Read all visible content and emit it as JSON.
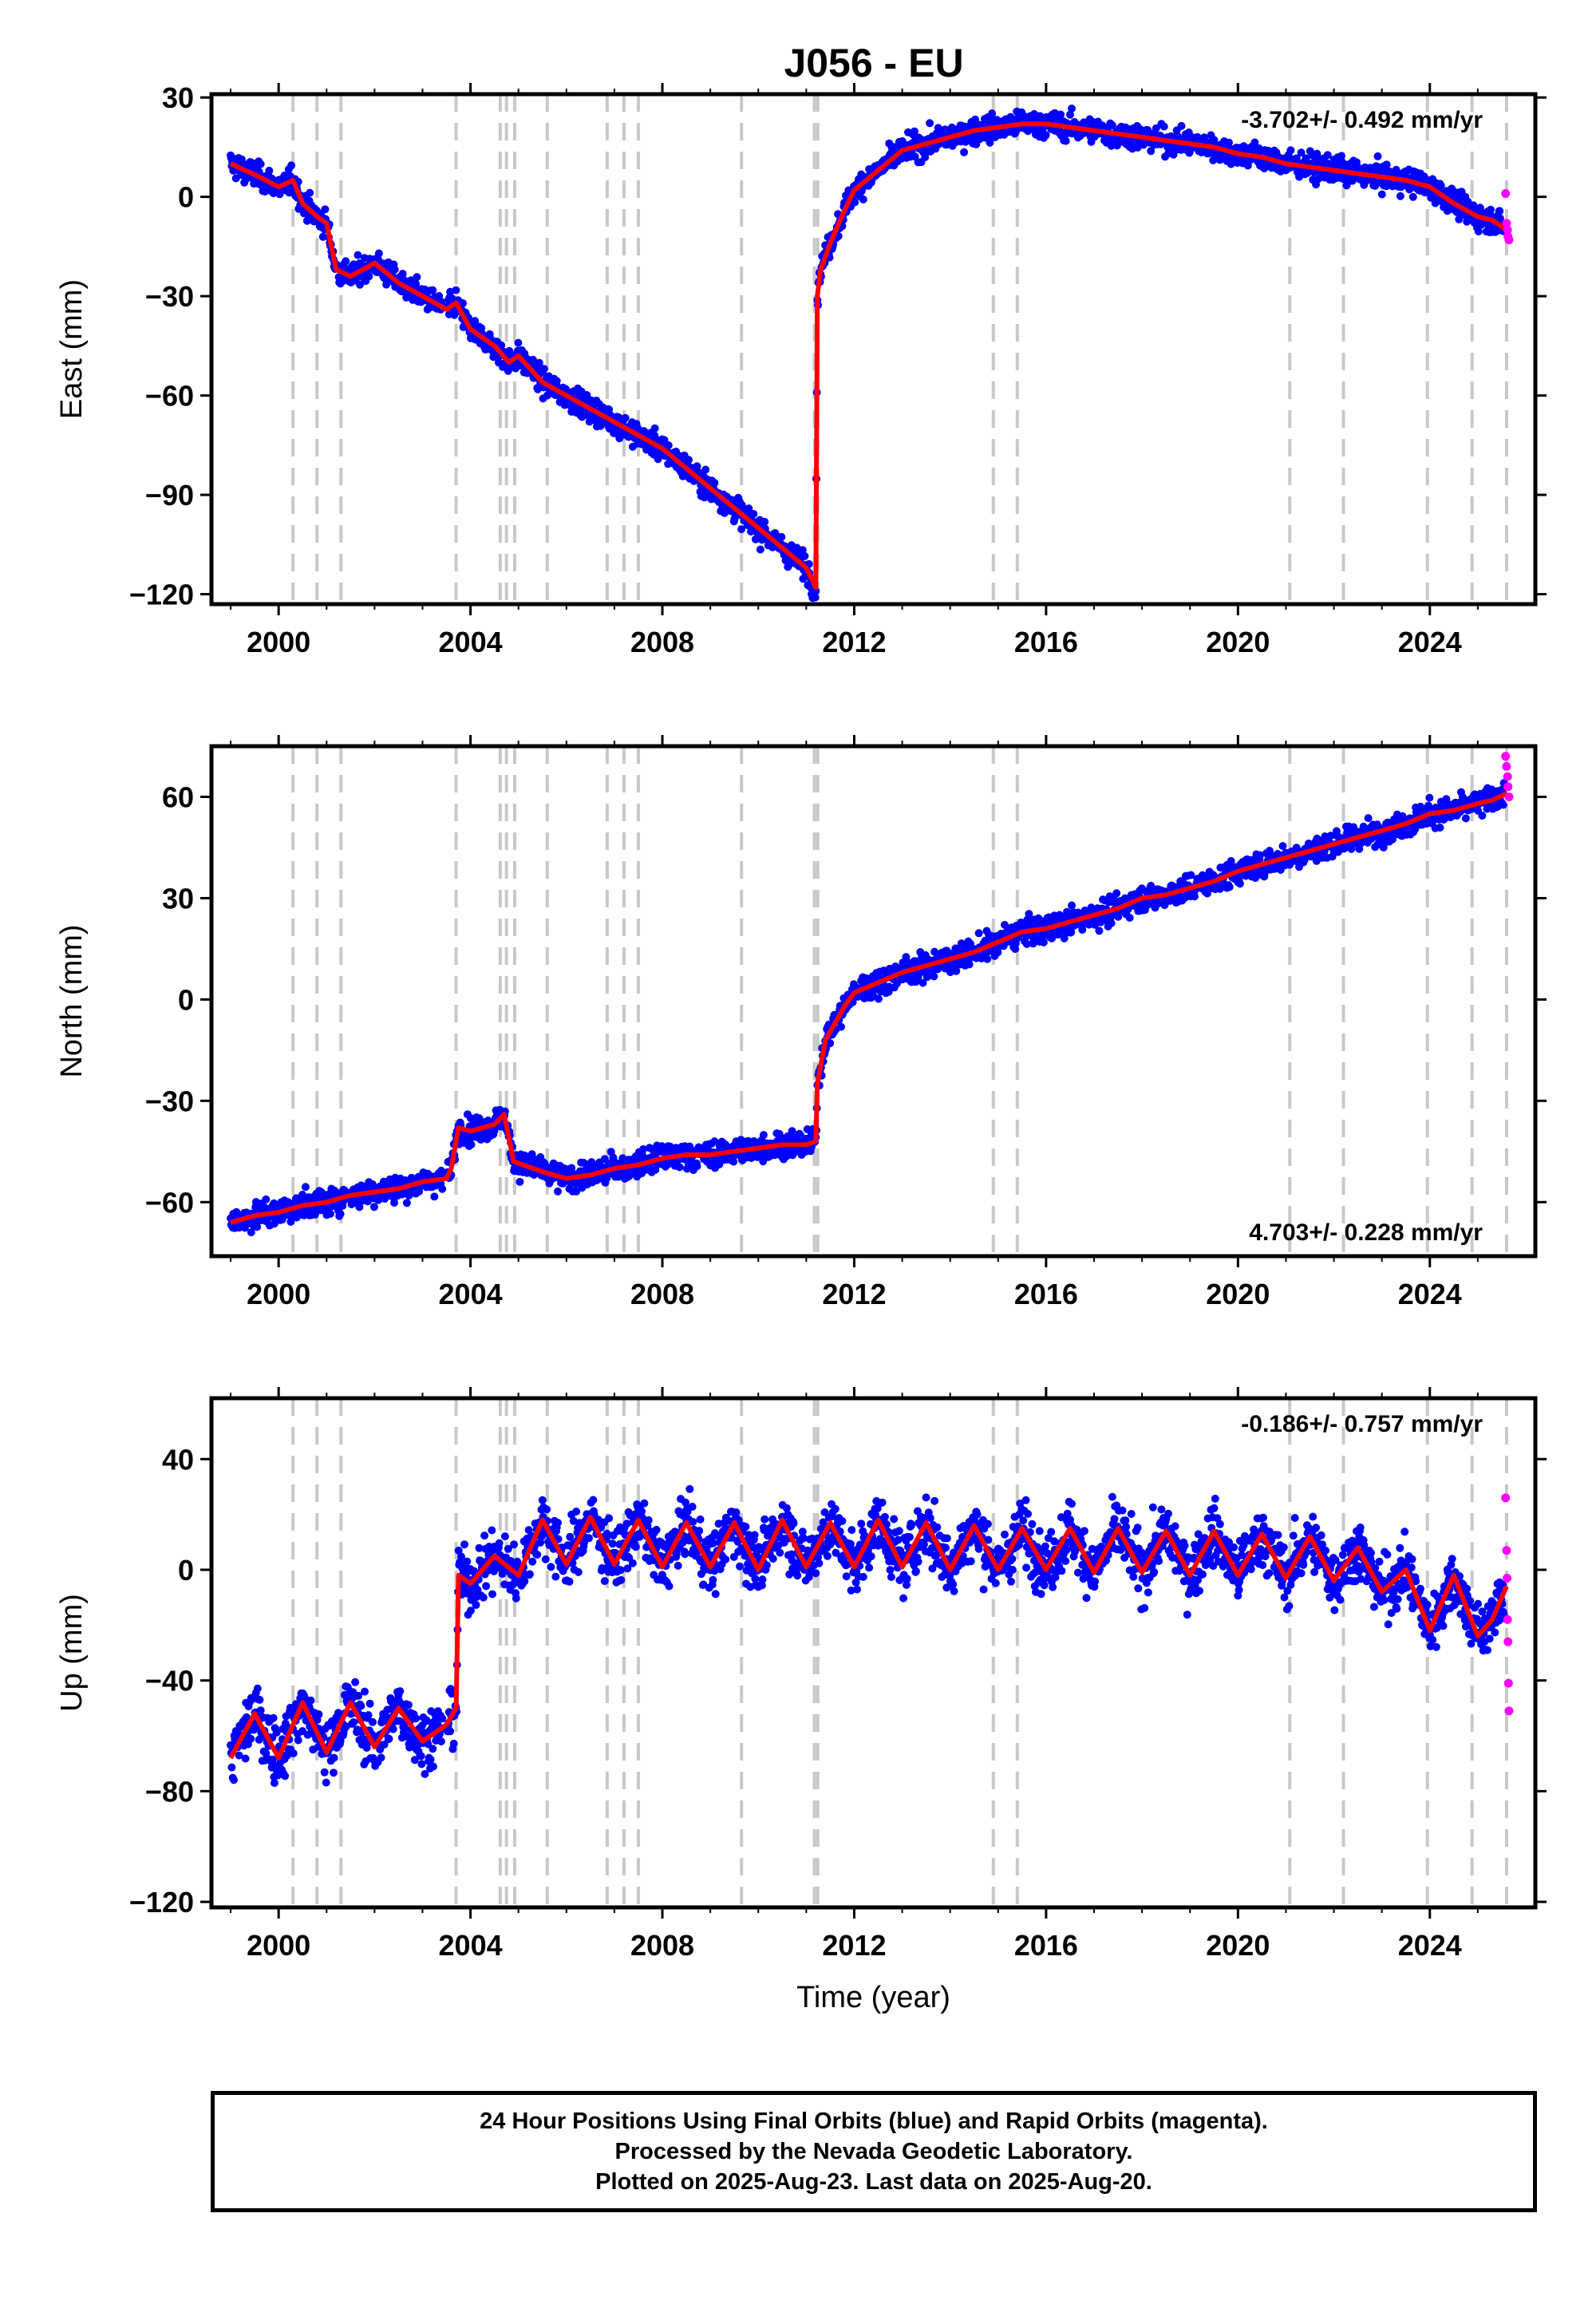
{
  "footer": {
    "line1": "24 Hour Positions Using Final Orbits (blue) and Rapid Orbits (magenta).",
    "line2": "Processed by the Nevada Geodetic Laboratory.",
    "line3": "Plotted on 2025-Aug-23. Last data on 2025-Aug-20."
  },
  "colors": {
    "final_orbits": "#0000ff",
    "rapid_orbits": "#ff00ff",
    "model": "#ff0000",
    "event_lines": "#c8c8c8"
  },
  "chart_data": [
    {
      "type": "scatter",
      "title": "J056 - EU",
      "xlabel": "",
      "ylabel": "East (mm)",
      "xlim": [
        1998.6,
        2026.2
      ],
      "ylim": [
        -123,
        31
      ],
      "xticks": [
        "2000",
        "2004",
        "2008",
        "2012",
        "2016",
        "2020",
        "2024"
      ],
      "yticks": [
        "30",
        "0",
        "−30",
        "−60",
        "−90",
        "−120"
      ],
      "rate_text": "-3.702+/- 0.492 mm/yr",
      "grid": false,
      "series": [
        {
          "color": "#ff0000",
          "x": [
            1999.0,
            1999.6,
            2000.0,
            2000.3,
            2000.5,
            2000.8,
            2001.0,
            2001.2,
            2001.5,
            2002.0,
            2002.5,
            2003.0,
            2003.5,
            2003.7,
            2004.0,
            2004.5,
            2004.8,
            2005.0,
            2005.5,
            2006.0,
            2006.5,
            2007.0,
            2007.5,
            2008.0,
            2008.5,
            2009.0,
            2009.5,
            2010.0,
            2010.5,
            2011.0,
            2011.2,
            2011.23,
            2011.3,
            2011.5,
            2011.8,
            2012.0,
            2012.5,
            2013.0,
            2013.5,
            2014.0,
            2014.5,
            2015.0,
            2015.5,
            2016.0,
            2016.5,
            2017.0,
            2017.5,
            2018.0,
            2018.5,
            2019.0,
            2019.5,
            2020.0,
            2020.5,
            2021.0,
            2021.5,
            2022.0,
            2022.5,
            2023.0,
            2023.5,
            2024.0,
            2024.5,
            2025.0,
            2025.3,
            2025.6
          ],
          "y": [
            10,
            6,
            3,
            5,
            -2,
            -6,
            -8,
            -22,
            -24,
            -20,
            -26,
            -30,
            -34,
            -32,
            -40,
            -45,
            -50,
            -48,
            -56,
            -60,
            -64,
            -68,
            -72,
            -76,
            -82,
            -88,
            -94,
            -100,
            -106,
            -112,
            -118,
            -30,
            -22,
            -14,
            -4,
            2,
            8,
            14,
            16,
            18,
            20,
            21,
            22,
            22,
            21,
            20,
            19,
            18,
            17,
            16,
            15,
            13,
            12,
            10,
            9,
            8,
            7,
            6,
            5,
            3,
            -2,
            -6,
            -7,
            -10
          ]
        },
        {
          "color": "#ff00ff",
          "x": [
            2025.58,
            2025.6,
            2025.62,
            2025.63,
            2025.65
          ],
          "y": [
            1,
            -8,
            -10,
            -12,
            -13
          ]
        }
      ]
    },
    {
      "type": "scatter",
      "title": "",
      "xlabel": "",
      "ylabel": "North (mm)",
      "xlim": [
        1998.6,
        2026.2
      ],
      "ylim": [
        -76,
        75
      ],
      "xticks": [
        "2000",
        "2004",
        "2008",
        "2012",
        "2016",
        "2020",
        "2024"
      ],
      "yticks": [
        "60",
        "30",
        "0",
        "−30",
        "−60"
      ],
      "rate_text": "4.703+/- 0.228 mm/yr",
      "grid": false,
      "series": [
        {
          "color": "#ff0000",
          "x": [
            1999.0,
            1999.5,
            2000.0,
            2000.5,
            2001.0,
            2001.5,
            2002.0,
            2002.5,
            2003.0,
            2003.5,
            2003.6,
            2003.75,
            2004.0,
            2004.5,
            2004.7,
            2004.9,
            2005.5,
            2006.0,
            2006.5,
            2007.0,
            2007.5,
            2008.0,
            2008.5,
            2009.0,
            2009.5,
            2010.0,
            2010.5,
            2011.0,
            2011.2,
            2011.23,
            2011.4,
            2011.8,
            2012.0,
            2012.5,
            2013.0,
            2013.5,
            2014.0,
            2014.5,
            2015.0,
            2015.5,
            2016.0,
            2016.5,
            2017.0,
            2017.5,
            2018.0,
            2018.5,
            2019.0,
            2019.5,
            2020.0,
            2020.5,
            2021.0,
            2021.5,
            2022.0,
            2022.5,
            2023.0,
            2023.5,
            2024.0,
            2024.5,
            2025.0,
            2025.3,
            2025.6
          ],
          "y": [
            -66,
            -64,
            -63,
            -61,
            -60,
            -58,
            -57,
            -56,
            -54,
            -53,
            -50,
            -38,
            -39,
            -37,
            -34,
            -48,
            -51,
            -53,
            -52,
            -50,
            -49,
            -47,
            -46,
            -46,
            -45,
            -44,
            -43,
            -43,
            -42,
            -25,
            -12,
            -2,
            2,
            5,
            8,
            10,
            12,
            14,
            17,
            20,
            21,
            23,
            25,
            27,
            30,
            31,
            33,
            35,
            38,
            40,
            42,
            44,
            46,
            48,
            50,
            52,
            55,
            56,
            58,
            59,
            61
          ]
        },
        {
          "color": "#ff00ff",
          "x": [
            2025.58,
            2025.6,
            2025.62,
            2025.63,
            2025.65
          ],
          "y": [
            72,
            69,
            66,
            63,
            60
          ]
        }
      ]
    },
    {
      "type": "scatter",
      "title": "",
      "xlabel": "Time (year)",
      "ylabel": "Up (mm)",
      "xlim": [
        1998.6,
        2026.2
      ],
      "ylim": [
        -122,
        62
      ],
      "xticks": [
        "2000",
        "2004",
        "2008",
        "2012",
        "2016",
        "2020",
        "2024"
      ],
      "yticks": [
        "40",
        "0",
        "−40",
        "−80",
        "−120"
      ],
      "rate_text": "-0.186+/- 0.757 mm/yr",
      "grid": false,
      "series": [
        {
          "color": "#ff0000",
          "x": [
            1999.0,
            1999.5,
            2000.0,
            2000.5,
            2001.0,
            2001.5,
            2002.0,
            2002.5,
            2003.0,
            2003.5,
            2003.7,
            2003.75,
            2004.0,
            2004.5,
            2005.0,
            2005.5,
            2006.0,
            2006.5,
            2007.0,
            2007.5,
            2008.0,
            2008.5,
            2009.0,
            2009.5,
            2010.0,
            2010.5,
            2011.0,
            2011.5,
            2012.0,
            2012.5,
            2013.0,
            2013.5,
            2014.0,
            2014.5,
            2015.0,
            2015.5,
            2016.0,
            2016.5,
            2017.0,
            2017.5,
            2018.0,
            2018.5,
            2019.0,
            2019.5,
            2020.0,
            2020.5,
            2021.0,
            2021.5,
            2022.0,
            2022.5,
            2023.0,
            2023.5,
            2024.0,
            2024.5,
            2025.0,
            2025.3,
            2025.6
          ],
          "y": [
            -68,
            -52,
            -68,
            -48,
            -66,
            -48,
            -64,
            -50,
            -62,
            -56,
            -50,
            -2,
            -5,
            5,
            -2,
            18,
            2,
            19,
            2,
            18,
            1,
            17,
            1,
            17,
            0,
            18,
            1,
            17,
            1,
            18,
            1,
            17,
            0,
            16,
            0,
            15,
            0,
            15,
            -1,
            15,
            -1,
            14,
            -2,
            14,
            -2,
            13,
            -3,
            12,
            -4,
            8,
            -8,
            0,
            -22,
            -2,
            -24,
            -18,
            -6
          ]
        },
        {
          "color": "#ff00ff",
          "x": [
            2025.58,
            2025.6,
            2025.61,
            2025.62,
            2025.63,
            2025.64,
            2025.65
          ],
          "y": [
            26,
            7,
            -3,
            -18,
            -26,
            -41,
            -51
          ]
        }
      ]
    }
  ],
  "event_lines": [
    2000.3,
    2000.8,
    2001.3,
    2003.7,
    2004.62,
    2004.75,
    2004.92,
    2005.6,
    2006.85,
    2007.2,
    2007.5,
    2009.65,
    2011.17,
    2011.24,
    2014.9,
    2015.4,
    2021.08,
    2022.2,
    2023.95,
    2024.88,
    2025.6
  ]
}
